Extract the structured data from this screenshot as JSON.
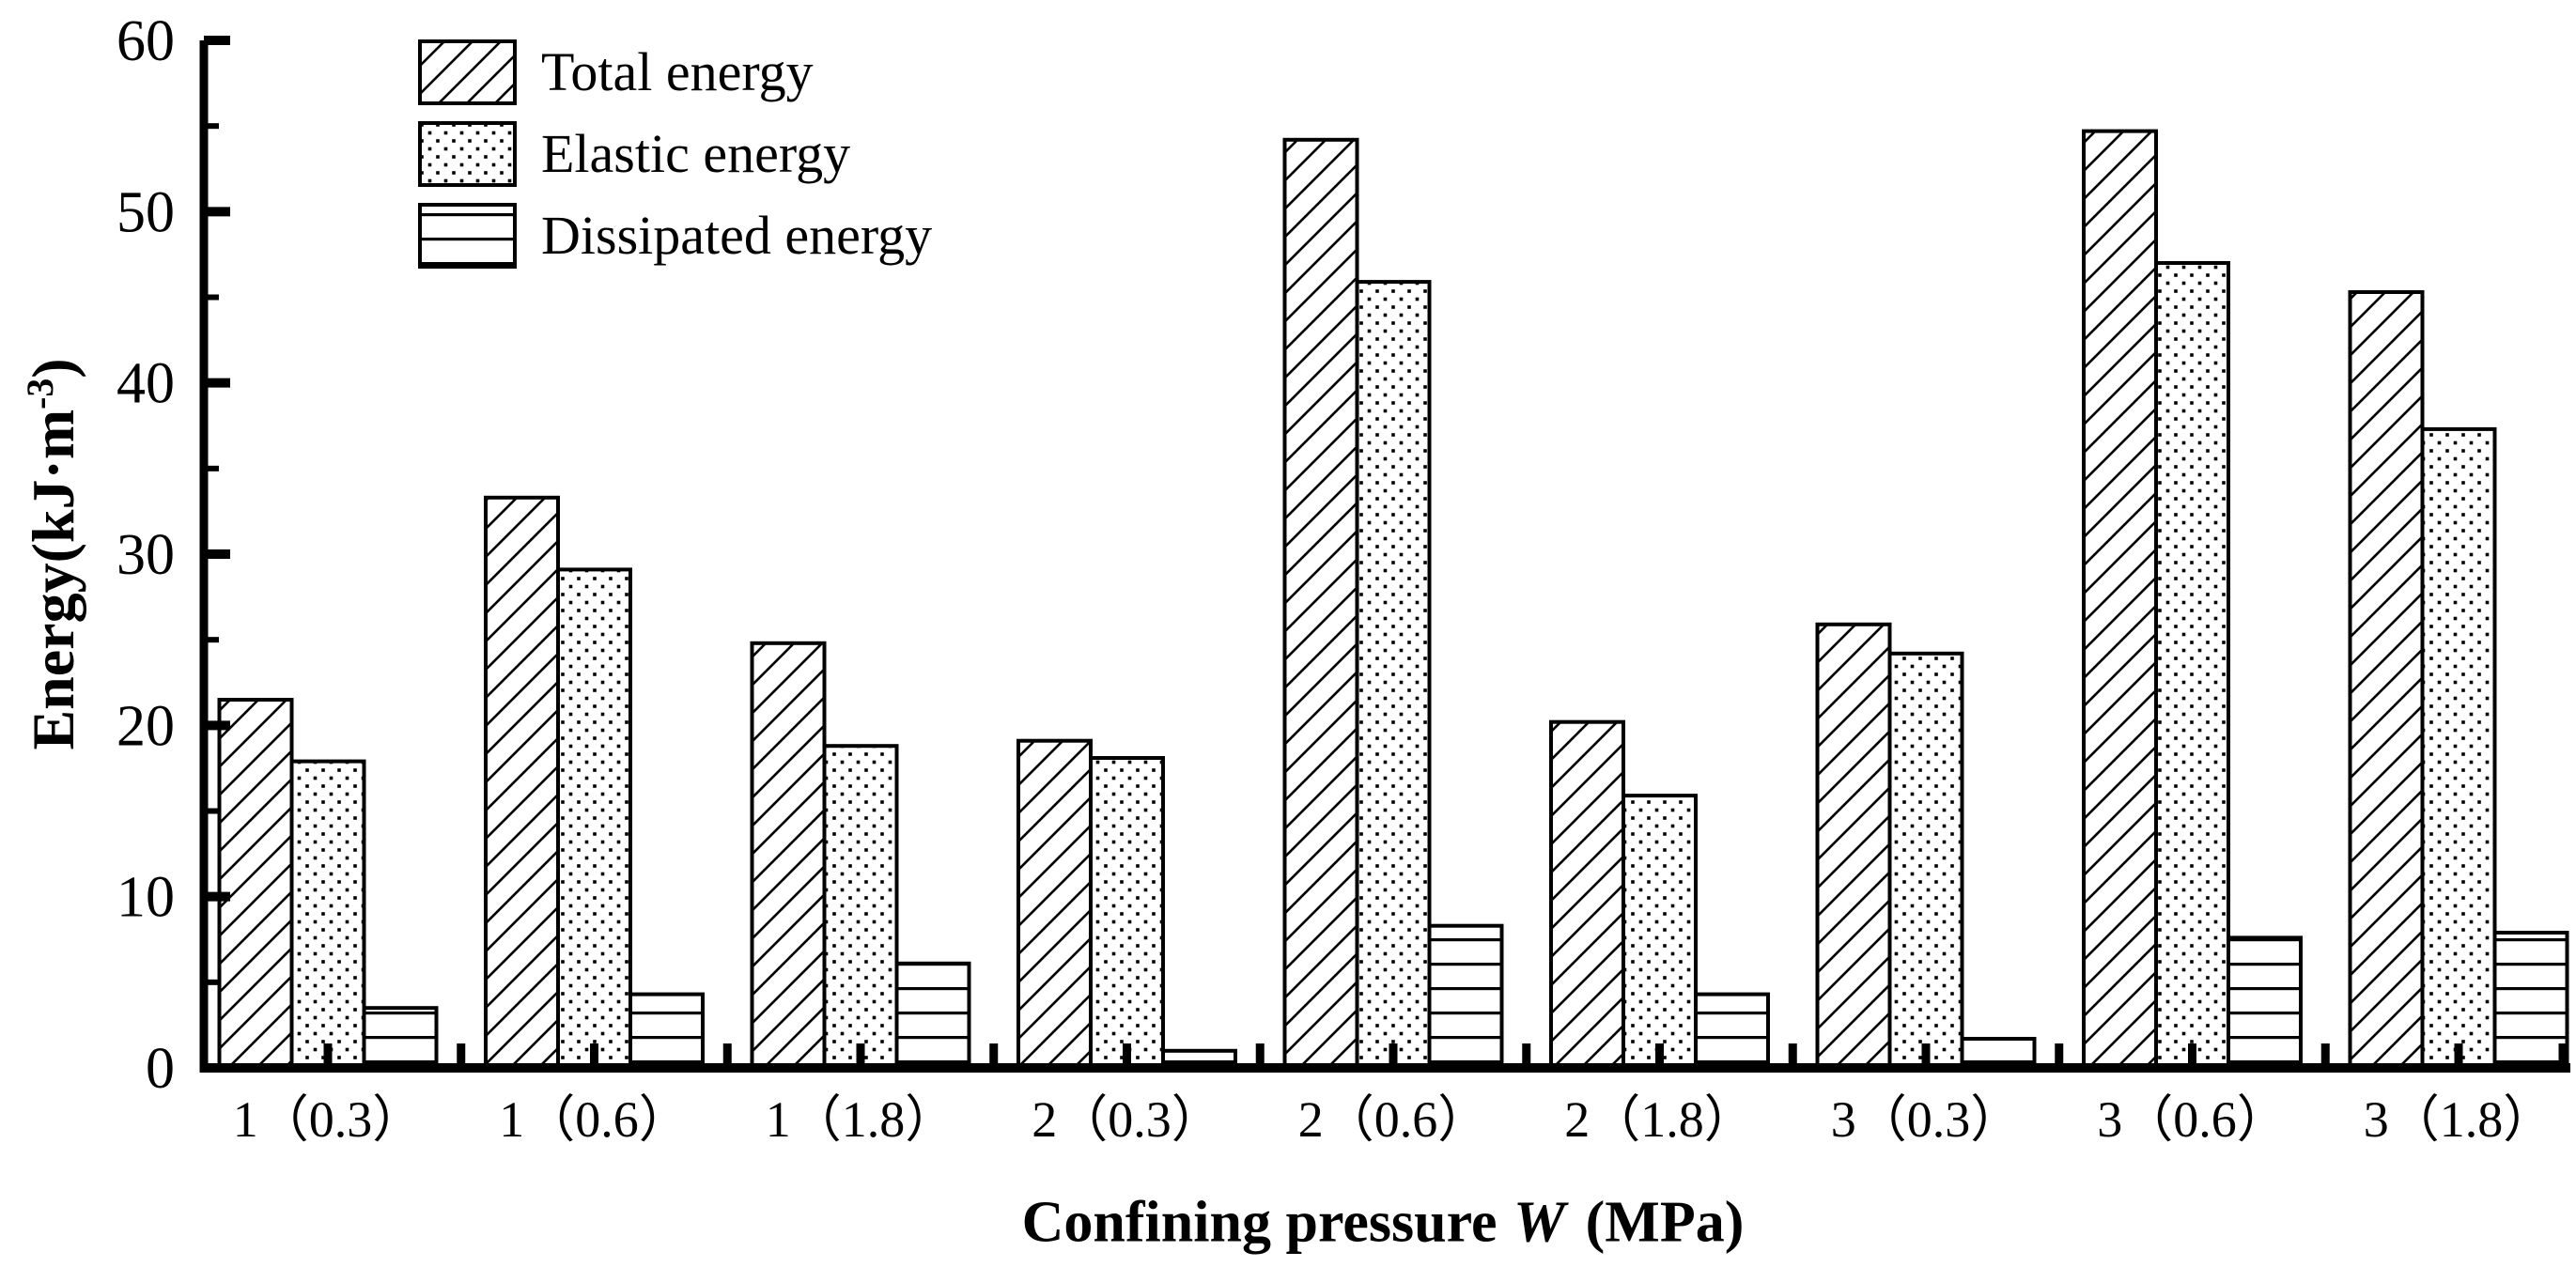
{
  "chart_data": {
    "type": "bar",
    "title": "",
    "xlabel": "Confining pressure W (MPa)",
    "xlabel_parts": {
      "prefix": "Confining pressure ",
      "italic_var": "W",
      "suffix": " (MPa)"
    },
    "ylabel": "Energy(kJ·m⁻³)",
    "ylabel_parts": {
      "base": "Energy(kJ·m",
      "superscript": "-3",
      "suffix": ")"
    },
    "ylim": [
      0,
      60
    ],
    "y_major_ticks": [
      0,
      10,
      20,
      30,
      40,
      50,
      60
    ],
    "y_tick_labels": [
      "0",
      "10",
      "20",
      "30",
      "40",
      "50",
      "60"
    ],
    "y_minor_step": 5,
    "grid": "off",
    "legend_position": "top-left-inside",
    "legend_entries": [
      "Total energy",
      "Elastic energy",
      "Dissipated energy"
    ],
    "categories": [
      "1（0.3）",
      "1（0.6）",
      "1（1.8）",
      "2（0.3）",
      "2（0.6）",
      "2（1.8）",
      "3（0.3）",
      "3（0.6）",
      "3（1.8）"
    ],
    "series": [
      {
        "name": "Total energy",
        "pattern": "diagonal-hatch",
        "values": [
          21.5,
          33.3,
          24.8,
          19.1,
          54.2,
          20.2,
          25.9,
          54.7,
          45.3
        ]
      },
      {
        "name": "Elastic energy",
        "pattern": "dots",
        "values": [
          17.9,
          29.1,
          18.8,
          18.1,
          45.9,
          15.9,
          24.2,
          47.0,
          37.3
        ]
      },
      {
        "name": "Dissipated energy",
        "pattern": "horizontal-lines",
        "values": [
          3.5,
          4.3,
          6.1,
          1.0,
          8.3,
          4.3,
          1.7,
          7.6,
          7.9
        ]
      }
    ],
    "bar_fill_color": "#ffffff",
    "bar_outline_color": "#000000",
    "axis_color": "#000000",
    "background_color": "#ffffff"
  }
}
